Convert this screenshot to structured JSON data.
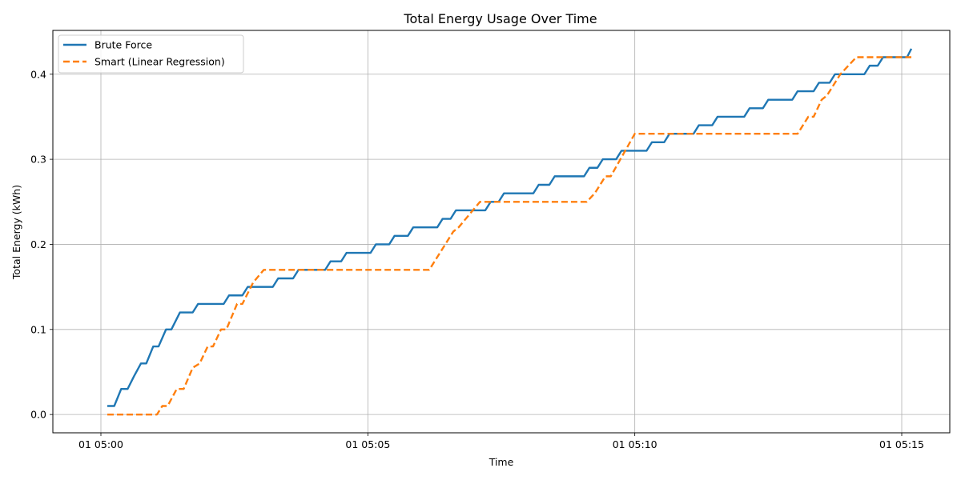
{
  "chart_data": {
    "type": "line",
    "title": "Total Energy Usage Over Time",
    "xlabel": "Time",
    "ylabel": "Total Energy (kWh)",
    "x_unit": "minutes past 05:00",
    "xlim": [
      -0.9,
      15.9
    ],
    "ylim": [
      -0.0215,
      0.4515
    ],
    "grid": true,
    "legend_position": "top-left",
    "x_ticks": [
      {
        "value": 0,
        "label": "01 05:00"
      },
      {
        "value": 5,
        "label": "01 05:05"
      },
      {
        "value": 10,
        "label": "01 05:10"
      },
      {
        "value": 15,
        "label": "01 05:15"
      }
    ],
    "y_ticks": [
      {
        "value": 0.0,
        "label": "0.0"
      },
      {
        "value": 0.1,
        "label": "0.1"
      },
      {
        "value": 0.2,
        "label": "0.2"
      },
      {
        "value": 0.3,
        "label": "0.3"
      },
      {
        "value": 0.4,
        "label": "0.4"
      }
    ],
    "series": [
      {
        "name": "Brute Force",
        "color": "#1f77b4",
        "style": "solid",
        "points": [
          [
            0.12,
            0.01
          ],
          [
            0.25,
            0.01
          ],
          [
            0.38,
            0.03
          ],
          [
            0.5,
            0.03
          ],
          [
            0.62,
            0.045
          ],
          [
            0.75,
            0.06
          ],
          [
            0.85,
            0.06
          ],
          [
            0.98,
            0.08
          ],
          [
            1.08,
            0.08
          ],
          [
            1.22,
            0.1
          ],
          [
            1.32,
            0.1
          ],
          [
            1.48,
            0.12
          ],
          [
            1.72,
            0.12
          ],
          [
            1.82,
            0.13
          ],
          [
            2.3,
            0.13
          ],
          [
            2.4,
            0.14
          ],
          [
            2.65,
            0.14
          ],
          [
            2.75,
            0.15
          ],
          [
            3.22,
            0.15
          ],
          [
            3.32,
            0.16
          ],
          [
            3.6,
            0.16
          ],
          [
            3.7,
            0.17
          ],
          [
            4.2,
            0.17
          ],
          [
            4.3,
            0.18
          ],
          [
            4.5,
            0.18
          ],
          [
            4.6,
            0.19
          ],
          [
            5.05,
            0.19
          ],
          [
            5.15,
            0.2
          ],
          [
            5.4,
            0.2
          ],
          [
            5.5,
            0.21
          ],
          [
            5.75,
            0.21
          ],
          [
            5.85,
            0.22
          ],
          [
            6.3,
            0.22
          ],
          [
            6.4,
            0.23
          ],
          [
            6.55,
            0.23
          ],
          [
            6.65,
            0.24
          ],
          [
            7.2,
            0.24
          ],
          [
            7.3,
            0.25
          ],
          [
            7.45,
            0.25
          ],
          [
            7.55,
            0.26
          ],
          [
            8.1,
            0.26
          ],
          [
            8.2,
            0.27
          ],
          [
            8.4,
            0.27
          ],
          [
            8.5,
            0.28
          ],
          [
            9.05,
            0.28
          ],
          [
            9.15,
            0.29
          ],
          [
            9.3,
            0.29
          ],
          [
            9.4,
            0.3
          ],
          [
            9.65,
            0.3
          ],
          [
            9.75,
            0.31
          ],
          [
            10.22,
            0.31
          ],
          [
            10.32,
            0.32
          ],
          [
            10.55,
            0.32
          ],
          [
            10.65,
            0.33
          ],
          [
            11.1,
            0.33
          ],
          [
            11.2,
            0.34
          ],
          [
            11.45,
            0.34
          ],
          [
            11.55,
            0.35
          ],
          [
            12.05,
            0.35
          ],
          [
            12.15,
            0.36
          ],
          [
            12.4,
            0.36
          ],
          [
            12.5,
            0.37
          ],
          [
            12.95,
            0.37
          ],
          [
            13.05,
            0.38
          ],
          [
            13.35,
            0.38
          ],
          [
            13.45,
            0.39
          ],
          [
            13.65,
            0.39
          ],
          [
            13.75,
            0.4
          ],
          [
            14.3,
            0.4
          ],
          [
            14.4,
            0.41
          ],
          [
            14.55,
            0.41
          ],
          [
            14.65,
            0.42
          ],
          [
            15.1,
            0.42
          ],
          [
            15.18,
            0.43
          ]
        ]
      },
      {
        "name": "Smart (Linear Regression)",
        "color": "#ff7f0e",
        "style": "dashed",
        "points": [
          [
            0.12,
            0.0
          ],
          [
            1.05,
            0.0
          ],
          [
            1.15,
            0.01
          ],
          [
            1.25,
            0.01
          ],
          [
            1.42,
            0.03
          ],
          [
            1.55,
            0.03
          ],
          [
            1.72,
            0.055
          ],
          [
            1.85,
            0.06
          ],
          [
            2.0,
            0.08
          ],
          [
            2.1,
            0.08
          ],
          [
            2.25,
            0.1
          ],
          [
            2.35,
            0.1
          ],
          [
            2.55,
            0.13
          ],
          [
            2.65,
            0.13
          ],
          [
            2.85,
            0.155
          ],
          [
            3.05,
            0.17
          ],
          [
            6.15,
            0.17
          ],
          [
            6.6,
            0.215
          ],
          [
            6.7,
            0.22
          ],
          [
            7.1,
            0.25
          ],
          [
            9.1,
            0.25
          ],
          [
            9.25,
            0.26
          ],
          [
            9.45,
            0.28
          ],
          [
            9.55,
            0.28
          ],
          [
            10.0,
            0.33
          ],
          [
            13.05,
            0.33
          ],
          [
            13.25,
            0.35
          ],
          [
            13.35,
            0.35
          ],
          [
            13.5,
            0.37
          ],
          [
            13.6,
            0.375
          ],
          [
            13.85,
            0.4
          ],
          [
            14.15,
            0.42
          ],
          [
            15.18,
            0.42
          ]
        ]
      }
    ]
  }
}
